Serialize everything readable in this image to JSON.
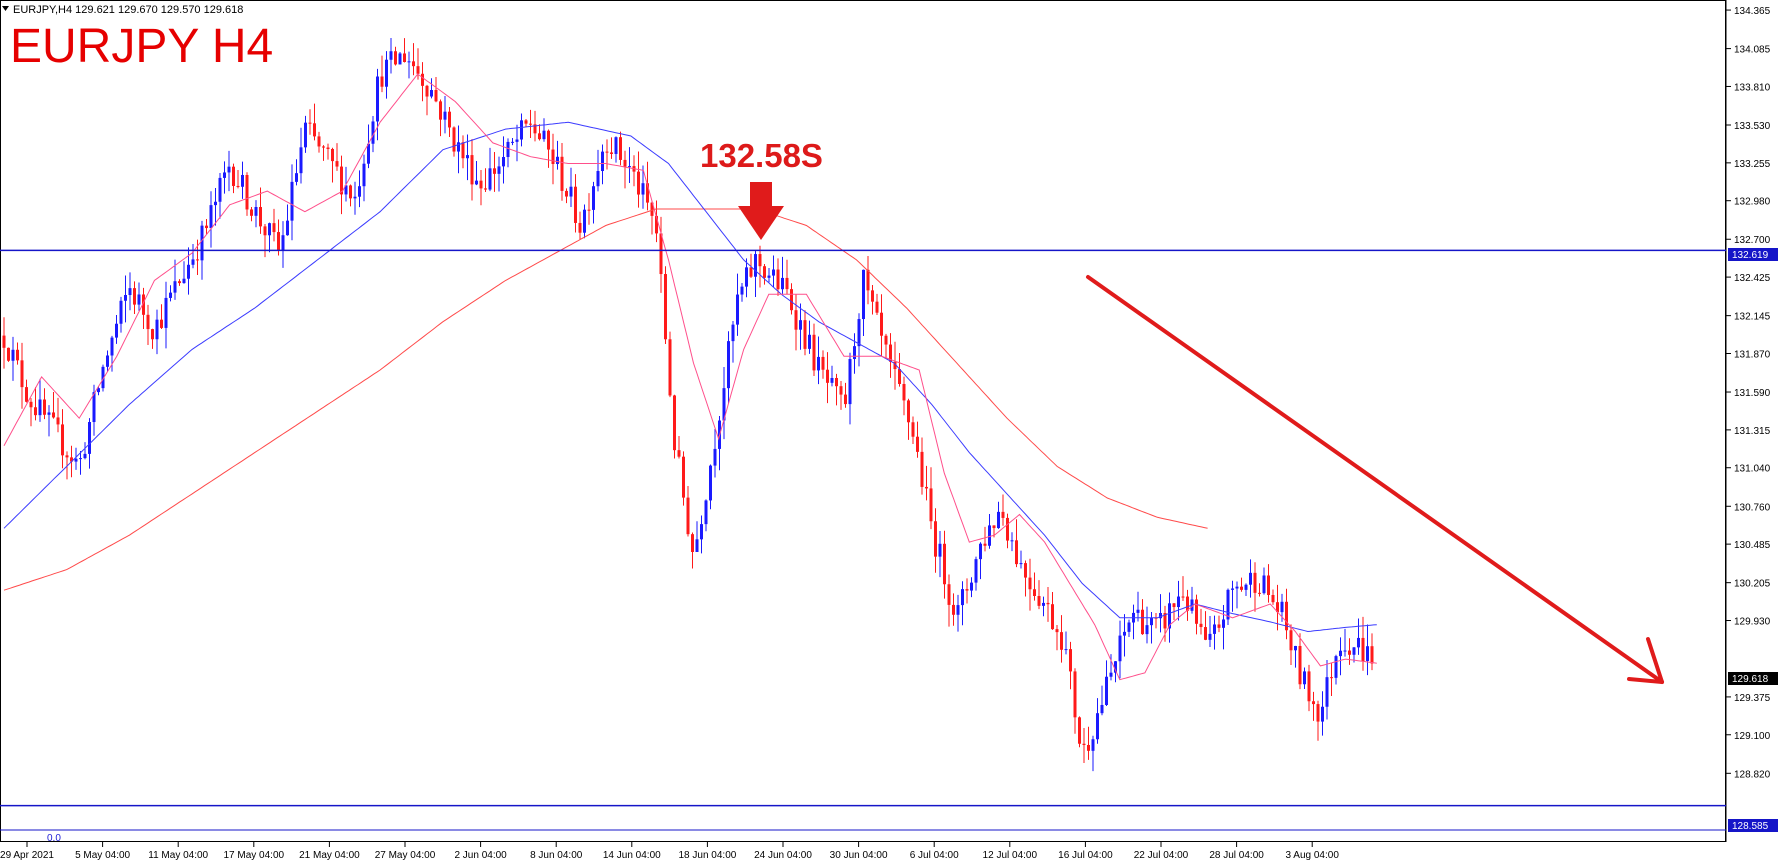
{
  "header": {
    "symbol_info": "EURJPY,H4  129.621 129.670 129.570 129.618",
    "pair_title": "EURJPY H4"
  },
  "annotation": {
    "level_label": "132.58S"
  },
  "indicator": {
    "value_label": "0.0"
  },
  "price_tags": {
    "resistance": "132.619",
    "current": "129.618",
    "support": "128.585"
  },
  "colors": {
    "bull_candle": "#1a1aff",
    "bear_candle": "#ff1a1a",
    "ma_fast": "#ff4f8b",
    "ma_mid": "#3b3bff",
    "ma_slow": "#ff4a4a",
    "hline": "#1515c8",
    "arrow": "#e01b1b",
    "current_tag": "#000000"
  },
  "chart_data": {
    "type": "candlestick",
    "symbol": "EURJPY",
    "timeframe": "H4",
    "ylim": [
      128.35,
      134.38
    ],
    "yticks": [
      "134.365",
      "134.085",
      "133.810",
      "133.530",
      "133.255",
      "132.980",
      "132.700",
      "132.425",
      "132.145",
      "131.870",
      "131.590",
      "131.315",
      "131.040",
      "130.760",
      "130.485",
      "130.205",
      "129.930",
      "129.375",
      "129.100",
      "128.820"
    ],
    "xticks": [
      "29 Apr 2021",
      "5 May 04:00",
      "11 May 04:00",
      "17 May 04:00",
      "21 May 04:00",
      "27 May 04:00",
      "2 Jun 04:00",
      "8 Jun 04:00",
      "14 Jun 04:00",
      "18 Jun 04:00",
      "24 Jun 04:00",
      "30 Jun 04:00",
      "6 Jul 04:00",
      "12 Jul 04:00",
      "16 Jul 04:00",
      "22 Jul 04:00",
      "28 Jul 04:00",
      "3 Aug 04:00"
    ],
    "horizontal_lines": [
      132.619,
      128.585
    ],
    "last_price": 129.618,
    "price_path": [
      [
        0,
        132.0
      ],
      [
        4,
        131.55
      ],
      [
        8,
        131.3
      ],
      [
        12,
        131.05
      ],
      [
        16,
        131.8
      ],
      [
        20,
        132.35
      ],
      [
        24,
        132.05
      ],
      [
        28,
        132.4
      ],
      [
        32,
        132.75
      ],
      [
        36,
        133.25
      ],
      [
        40,
        132.9
      ],
      [
        44,
        132.6
      ],
      [
        48,
        133.5
      ],
      [
        52,
        133.25
      ],
      [
        56,
        133.0
      ],
      [
        60,
        133.9
      ],
      [
        64,
        134.05
      ],
      [
        68,
        133.8
      ],
      [
        72,
        133.4
      ],
      [
        76,
        133.1
      ],
      [
        80,
        133.3
      ],
      [
        84,
        133.55
      ],
      [
        88,
        133.25
      ],
      [
        92,
        132.8
      ],
      [
        96,
        133.45
      ],
      [
        100,
        133.2
      ],
      [
        104,
        132.8
      ],
      [
        107,
        131.2
      ],
      [
        110,
        130.4
      ],
      [
        113,
        131.15
      ],
      [
        117,
        132.25
      ],
      [
        120,
        132.55
      ],
      [
        125,
        132.3
      ],
      [
        130,
        131.75
      ],
      [
        134,
        131.45
      ],
      [
        137,
        132.4
      ],
      [
        141,
        131.8
      ],
      [
        145,
        131.3
      ],
      [
        148,
        130.6
      ],
      [
        152,
        129.95
      ],
      [
        156,
        130.5
      ],
      [
        159,
        130.75
      ],
      [
        162,
        130.35
      ],
      [
        166,
        130.05
      ],
      [
        169,
        129.8
      ],
      [
        172,
        128.95
      ],
      [
        176,
        129.45
      ],
      [
        180,
        130.0
      ],
      [
        184,
        129.85
      ],
      [
        188,
        130.15
      ],
      [
        192,
        129.7
      ],
      [
        196,
        130.15
      ],
      [
        200,
        130.25
      ],
      [
        204,
        129.95
      ],
      [
        207,
        129.5
      ],
      [
        210,
        129.25
      ],
      [
        213,
        129.8
      ],
      [
        216,
        129.75
      ],
      [
        219,
        129.62
      ]
    ],
    "ma_fast_path": [
      [
        0,
        131.2
      ],
      [
        6,
        131.7
      ],
      [
        12,
        131.4
      ],
      [
        18,
        131.85
      ],
      [
        24,
        132.4
      ],
      [
        30,
        132.6
      ],
      [
        36,
        132.95
      ],
      [
        42,
        133.05
      ],
      [
        48,
        132.9
      ],
      [
        54,
        133.05
      ],
      [
        60,
        133.55
      ],
      [
        66,
        133.9
      ],
      [
        72,
        133.7
      ],
      [
        78,
        133.4
      ],
      [
        84,
        133.3
      ],
      [
        90,
        133.25
      ],
      [
        96,
        133.25
      ],
      [
        102,
        133.2
      ],
      [
        106,
        132.55
      ],
      [
        110,
        131.8
      ],
      [
        114,
        131.25
      ],
      [
        118,
        131.9
      ],
      [
        122,
        132.3
      ],
      [
        128,
        132.3
      ],
      [
        134,
        131.85
      ],
      [
        140,
        131.85
      ],
      [
        146,
        131.75
      ],
      [
        150,
        131.0
      ],
      [
        154,
        130.5
      ],
      [
        158,
        130.55
      ],
      [
        162,
        130.7
      ],
      [
        166,
        130.5
      ],
      [
        170,
        130.2
      ],
      [
        174,
        129.9
      ],
      [
        178,
        129.5
      ],
      [
        182,
        129.55
      ],
      [
        186,
        129.9
      ],
      [
        190,
        130.05
      ],
      [
        196,
        129.95
      ],
      [
        202,
        130.05
      ],
      [
        206,
        129.85
      ],
      [
        210,
        129.6
      ],
      [
        214,
        129.65
      ],
      [
        219,
        129.62
      ]
    ],
    "ma_mid_path": [
      [
        0,
        130.6
      ],
      [
        10,
        131.05
      ],
      [
        20,
        131.5
      ],
      [
        30,
        131.9
      ],
      [
        40,
        132.2
      ],
      [
        50,
        132.55
      ],
      [
        60,
        132.9
      ],
      [
        70,
        133.35
      ],
      [
        80,
        133.5
      ],
      [
        90,
        133.55
      ],
      [
        100,
        133.45
      ],
      [
        106,
        133.25
      ],
      [
        112,
        132.9
      ],
      [
        118,
        132.55
      ],
      [
        124,
        132.3
      ],
      [
        130,
        132.1
      ],
      [
        136,
        131.95
      ],
      [
        142,
        131.8
      ],
      [
        148,
        131.5
      ],
      [
        154,
        131.15
      ],
      [
        160,
        130.85
      ],
      [
        166,
        130.55
      ],
      [
        172,
        130.2
      ],
      [
        178,
        129.95
      ],
      [
        184,
        129.95
      ],
      [
        190,
        130.05
      ],
      [
        196,
        129.98
      ],
      [
        202,
        129.92
      ],
      [
        208,
        129.85
      ],
      [
        214,
        129.88
      ],
      [
        219,
        129.9
      ]
    ],
    "ma_slow_path": [
      [
        0,
        130.15
      ],
      [
        10,
        130.3
      ],
      [
        20,
        130.55
      ],
      [
        30,
        130.85
      ],
      [
        40,
        131.15
      ],
      [
        50,
        131.45
      ],
      [
        60,
        131.75
      ],
      [
        70,
        132.1
      ],
      [
        80,
        132.4
      ],
      [
        88,
        132.6
      ],
      [
        96,
        132.8
      ],
      [
        104,
        132.92
      ],
      [
        112,
        132.92
      ],
      [
        120,
        132.92
      ],
      [
        128,
        132.8
      ],
      [
        136,
        132.55
      ],
      [
        144,
        132.2
      ],
      [
        152,
        131.8
      ],
      [
        160,
        131.4
      ],
      [
        168,
        131.05
      ],
      [
        176,
        130.82
      ],
      [
        184,
        130.68
      ],
      [
        192,
        130.6
      ]
    ]
  }
}
